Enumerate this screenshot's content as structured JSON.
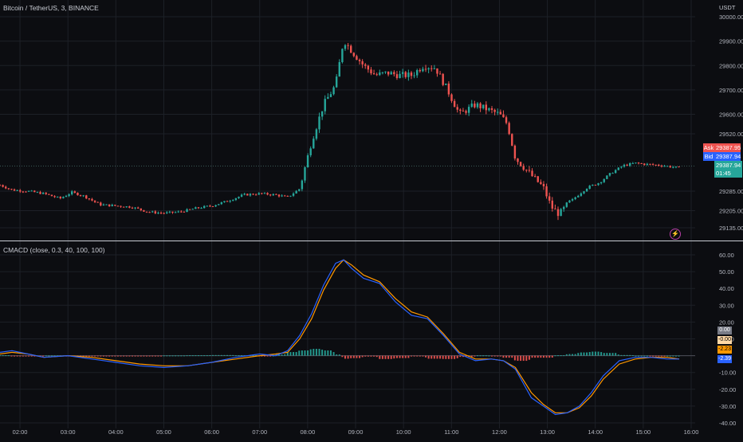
{
  "price_panel": {
    "title": "Bitcoin / TetherUS, 3, BINANCE",
    "currency": "USDT",
    "ask_label": "Ask",
    "ask_value": "29387.95",
    "bid_label": "Bid",
    "bid_value": "29387.94",
    "last_value": "29387.94",
    "countdown": "01:45"
  },
  "indicator_panel": {
    "title": "CMACD (close, 0.3, 40, 100, 100)",
    "badges": [
      "0.00",
      "-0.00",
      "-2.23",
      "-2.39"
    ]
  },
  "colors": {
    "up": "#26a69a",
    "down": "#ef5350",
    "macd": "#2962ff",
    "signal": "#ff9800",
    "background": "#0c0d11",
    "grid": "#1d2027"
  },
  "chart_data": [
    {
      "type": "candlestick",
      "title": "Bitcoin / TetherUS, 3, BINANCE",
      "x_ticks": [
        "02:00",
        "03:00",
        "04:00",
        "05:00",
        "06:00",
        "07:00",
        "08:00",
        "09:00",
        "10:00",
        "11:00",
        "12:00",
        "13:00",
        "14:00",
        "15:00",
        "16:00"
      ],
      "y_ticks": [
        30000,
        29900,
        29800,
        29700,
        29600,
        29520,
        29285,
        29205,
        29135
      ],
      "y_tick_labels": [
        "30000.00",
        "29900.00",
        "29800.00",
        "29700.00",
        "29600.00",
        "29520.00",
        "29285.00",
        "29205.00",
        "29135.00"
      ],
      "x_domain": [
        "01:35",
        "16:05"
      ],
      "close_path": [
        [
          "01:35",
          29310
        ],
        [
          "01:50",
          29290
        ],
        [
          "02:10",
          29285
        ],
        [
          "02:30",
          29275
        ],
        [
          "02:50",
          29255
        ],
        [
          "03:05",
          29280
        ],
        [
          "03:20",
          29265
        ],
        [
          "03:40",
          29230
        ],
        [
          "04:00",
          29225
        ],
        [
          "04:20",
          29220
        ],
        [
          "04:40",
          29200
        ],
        [
          "05:00",
          29195
        ],
        [
          "05:20",
          29200
        ],
        [
          "05:40",
          29215
        ],
        [
          "06:00",
          29225
        ],
        [
          "06:20",
          29245
        ],
        [
          "06:40",
          29270
        ],
        [
          "07:00",
          29275
        ],
        [
          "07:20",
          29270
        ],
        [
          "07:35",
          29260
        ],
        [
          "07:50",
          29295
        ],
        [
          "08:05",
          29490
        ],
        [
          "08:20",
          29640
        ],
        [
          "08:35",
          29720
        ],
        [
          "08:45",
          29905
        ],
        [
          "08:55",
          29860
        ],
        [
          "09:10",
          29800
        ],
        [
          "09:25",
          29760
        ],
        [
          "09:40",
          29770
        ],
        [
          "09:55",
          29760
        ],
        [
          "10:10",
          29760
        ],
        [
          "10:25",
          29800
        ],
        [
          "10:40",
          29790
        ],
        [
          "10:55",
          29700
        ],
        [
          "11:10",
          29600
        ],
        [
          "11:30",
          29640
        ],
        [
          "11:45",
          29620
        ],
        [
          "12:00",
          29600
        ],
        [
          "12:10",
          29560
        ],
        [
          "12:20",
          29420
        ],
        [
          "12:40",
          29350
        ],
        [
          "12:55",
          29300
        ],
        [
          "13:05",
          29220
        ],
        [
          "13:15",
          29190
        ],
        [
          "13:25",
          29230
        ],
        [
          "13:35",
          29260
        ],
        [
          "13:50",
          29300
        ],
        [
          "14:05",
          29320
        ],
        [
          "14:20",
          29360
        ],
        [
          "14:35",
          29390
        ],
        [
          "14:50",
          29400
        ],
        [
          "15:05",
          29395
        ],
        [
          "15:25",
          29390
        ],
        [
          "15:45",
          29380
        ]
      ],
      "current_price": 29387.94
    },
    {
      "type": "line",
      "title": "CMACD (close, 0.3, 40, 100, 100)",
      "x_ticks": [
        "02:00",
        "03:00",
        "04:00",
        "05:00",
        "06:00",
        "07:00",
        "08:00",
        "09:00",
        "10:00",
        "11:00",
        "12:00",
        "13:00",
        "14:00",
        "15:00",
        "16:00"
      ],
      "y_ticks": [
        60,
        50,
        40,
        30,
        20,
        10,
        0,
        -10,
        -20,
        -30,
        -40
      ],
      "y_tick_labels": [
        "60.00",
        "50.00",
        "40.00",
        "30.00",
        "20.00",
        "10.00",
        "",
        "-10.00",
        "-20.00",
        "-30.00",
        "-40.00"
      ],
      "ylim": [
        -40,
        60
      ],
      "x": [
        "01:35",
        "01:50",
        "02:10",
        "02:30",
        "03:00",
        "03:30",
        "04:00",
        "04:30",
        "05:00",
        "05:30",
        "06:00",
        "06:30",
        "07:00",
        "07:20",
        "07:35",
        "07:50",
        "08:05",
        "08:20",
        "08:35",
        "08:45",
        "08:55",
        "09:10",
        "09:30",
        "09:50",
        "10:10",
        "10:30",
        "10:50",
        "11:10",
        "11:30",
        "11:50",
        "12:05",
        "12:20",
        "12:40",
        "12:55",
        "13:10",
        "13:25",
        "13:40",
        "13:55",
        "14:10",
        "14:30",
        "14:50",
        "15:10",
        "15:30",
        "15:45"
      ],
      "series": [
        {
          "values": [
            2,
            3,
            1,
            -1,
            0,
            -2,
            -4,
            -6,
            -7,
            -6,
            -4,
            -1,
            1,
            0,
            3,
            12,
            25,
            42,
            55,
            57,
            52,
            46,
            43,
            32,
            24,
            22,
            12,
            1,
            -3,
            -2,
            -3,
            -8,
            -25,
            -30,
            -35,
            -34,
            -30,
            -22,
            -12,
            -3,
            -1,
            -1,
            -2,
            -2
          ]
        },
        {
          "values": [
            1,
            2,
            1,
            -1,
            0,
            -1,
            -3,
            -5,
            -6,
            -6,
            -4,
            -2,
            0,
            1,
            2,
            10,
            22,
            39,
            52,
            57,
            54,
            48,
            44,
            34,
            26,
            23,
            13,
            2,
            -2,
            -2,
            -3,
            -7,
            -22,
            -29,
            -34,
            -34,
            -31,
            -24,
            -14,
            -5,
            -2,
            -1,
            -1,
            -2
          ]
        }
      ],
      "histogram_note": "bars around zero line"
    }
  ]
}
